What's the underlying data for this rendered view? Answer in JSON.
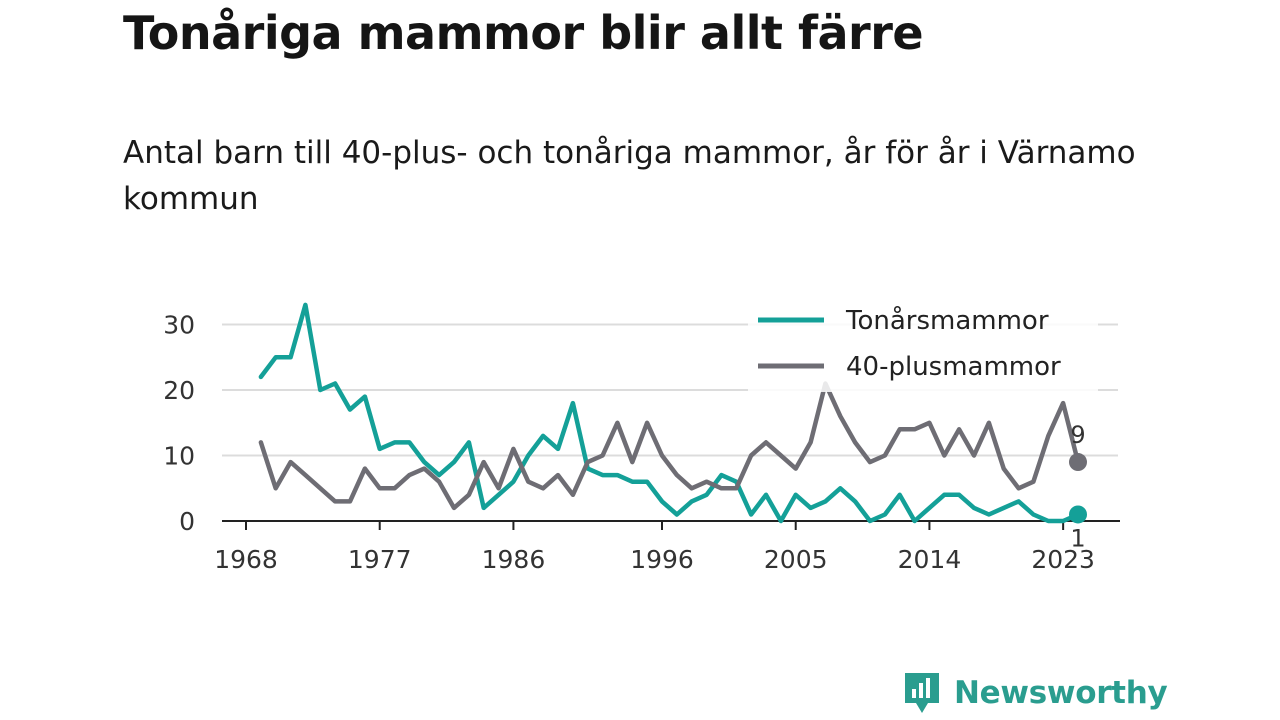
{
  "title": "Tonåriga mammor blir allt färre",
  "subtitle": "Antal barn till 40-plus- och tonåriga mammor, år för år i Värnamo kommun",
  "brand": {
    "name": "Newsworthy",
    "color": "#2a9d8f"
  },
  "chart_data": {
    "type": "line",
    "x": [
      1969,
      1970,
      1971,
      1972,
      1973,
      1974,
      1975,
      1976,
      1977,
      1978,
      1979,
      1980,
      1981,
      1982,
      1983,
      1984,
      1985,
      1986,
      1987,
      1988,
      1989,
      1990,
      1991,
      1992,
      1993,
      1994,
      1995,
      1996,
      1997,
      1998,
      1999,
      2000,
      2001,
      2002,
      2003,
      2004,
      2005,
      2006,
      2007,
      2008,
      2009,
      2010,
      2011,
      2012,
      2013,
      2014,
      2015,
      2016,
      2017,
      2018,
      2019,
      2020,
      2021,
      2022,
      2023,
      2024
    ],
    "series": [
      {
        "name": "Tonårsmammor",
        "color": "#14a098",
        "values": [
          22,
          25,
          25,
          33,
          20,
          21,
          17,
          19,
          11,
          12,
          12,
          9,
          7,
          9,
          12,
          2,
          4,
          6,
          10,
          13,
          11,
          18,
          8,
          7,
          7,
          6,
          6,
          3,
          1,
          3,
          4,
          7,
          6,
          1,
          4,
          0,
          4,
          2,
          3,
          5,
          3,
          0,
          1,
          4,
          0,
          2,
          4,
          4,
          2,
          1,
          2,
          3,
          1,
          0,
          0,
          1
        ]
      },
      {
        "name": "40-plusmammor",
        "color": "#6e6d74",
        "values": [
          12,
          5,
          9,
          7,
          5,
          3,
          3,
          8,
          5,
          5,
          7,
          8,
          6,
          2,
          4,
          9,
          5,
          11,
          6,
          5,
          7,
          4,
          9,
          10,
          15,
          9,
          15,
          10,
          7,
          5,
          6,
          5,
          5,
          10,
          12,
          10,
          8,
          12,
          21,
          16,
          12,
          9,
          10,
          14,
          14,
          15,
          10,
          14,
          10,
          15,
          8,
          5,
          6,
          13,
          18,
          9
        ]
      }
    ],
    "end_labels": [
      "1",
      "9"
    ],
    "xticks": [
      1968,
      1977,
      1986,
      1996,
      2005,
      2014,
      2023
    ],
    "yticks": [
      0,
      10,
      20,
      30
    ],
    "xlim": [
      1968,
      2024
    ],
    "ylim": [
      0,
      35
    ],
    "grid": "horizontal",
    "legend": "top-right",
    "xlabel": "",
    "ylabel": ""
  }
}
